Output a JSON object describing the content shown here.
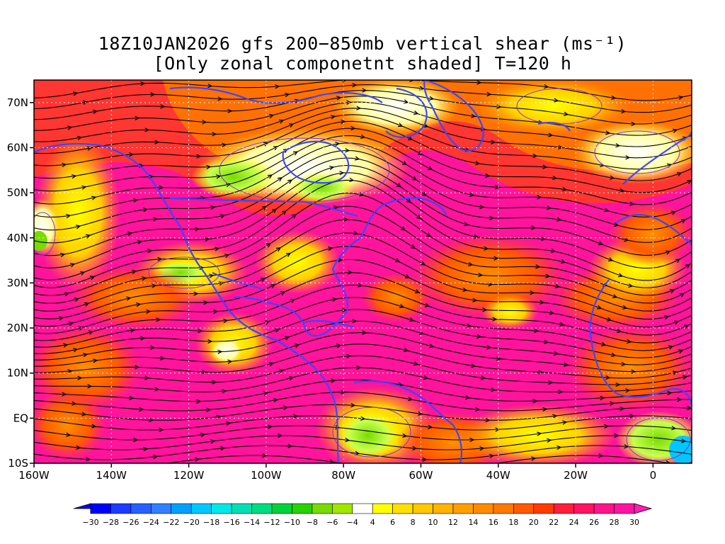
{
  "title": {
    "line1": "18Z10JAN2026 gfs 200−850mb vertical shear (ms⁻¹)",
    "line2": "[Only zonal componetnt shaded] T=120 h"
  },
  "map": {
    "lon_range": [
      -160,
      10
    ],
    "lat_range": [
      -10,
      75
    ],
    "lat_ticks": [
      {
        "value": 70,
        "label": "70N"
      },
      {
        "value": 60,
        "label": "60N"
      },
      {
        "value": 50,
        "label": "50N"
      },
      {
        "value": 40,
        "label": "40N"
      },
      {
        "value": 30,
        "label": "30N"
      },
      {
        "value": 20,
        "label": "20N"
      },
      {
        "value": 10,
        "label": "10N"
      },
      {
        "value": 0,
        "label": "EQ"
      },
      {
        "value": -10,
        "label": "10S"
      }
    ],
    "lon_ticks": [
      {
        "value": -160,
        "label": "160W"
      },
      {
        "value": -140,
        "label": "140W"
      },
      {
        "value": -120,
        "label": "120W"
      },
      {
        "value": -100,
        "label": "100W"
      },
      {
        "value": -80,
        "label": "80W"
      },
      {
        "value": -60,
        "label": "60W"
      },
      {
        "value": -40,
        "label": "40W"
      },
      {
        "value": -20,
        "label": "20W"
      },
      {
        "value": 0,
        "label": "0"
      }
    ],
    "coastline_color": "#3c46ff",
    "streamline_color": "#000000",
    "contour_color": "#8a2be2"
  },
  "colorbar": {
    "labels": [
      "-30",
      "-28",
      "-26",
      "-24",
      "-22",
      "-20",
      "-18",
      "-16",
      "-14",
      "-12",
      "-10",
      "-8",
      "-6",
      "-4",
      "4",
      "6",
      "8",
      "10",
      "12",
      "14",
      "16",
      "18",
      "20",
      "22",
      "24",
      "26",
      "28",
      "30"
    ],
    "colors": [
      "#0000ff",
      "#1c3cff",
      "#2860ff",
      "#3080ff",
      "#00a0ff",
      "#00c8ff",
      "#00e8e8",
      "#00e0b4",
      "#00dc80",
      "#00d23c",
      "#28d200",
      "#78dc00",
      "#a0e600",
      "#ffffff",
      "#ffff00",
      "#ffe000",
      "#ffc800",
      "#ffb400",
      "#ffa000",
      "#ff8c00",
      "#ff7800",
      "#ff5a00",
      "#ff3c00",
      "#ff1e3c",
      "#ff1464",
      "#ff148c",
      "#ff14a0"
    ],
    "under_color": "#0000ff",
    "over_color": "#ff1eb4"
  }
}
